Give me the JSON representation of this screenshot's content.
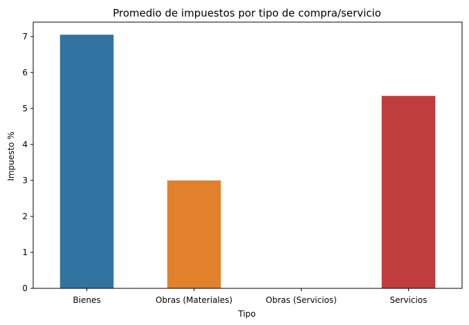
{
  "chart_data": {
    "type": "bar",
    "title": "Promedio de impuestos por tipo de compra/servicio",
    "xlabel": "Tipo",
    "ylabel": "Impuesto %",
    "categories": [
      "Bienes",
      "Obras (Materiales)",
      "Obras (Servicios)",
      "Servicios"
    ],
    "values": [
      7.05,
      3.0,
      0,
      5.35
    ],
    "colors": [
      "#3274a1",
      "#e1812c",
      "#3a923a",
      "#c03d3e"
    ],
    "ylim": [
      0,
      7.4
    ],
    "yticks": [
      0,
      1,
      2,
      3,
      4,
      5,
      6,
      7
    ],
    "grid": false,
    "legend": "none"
  }
}
